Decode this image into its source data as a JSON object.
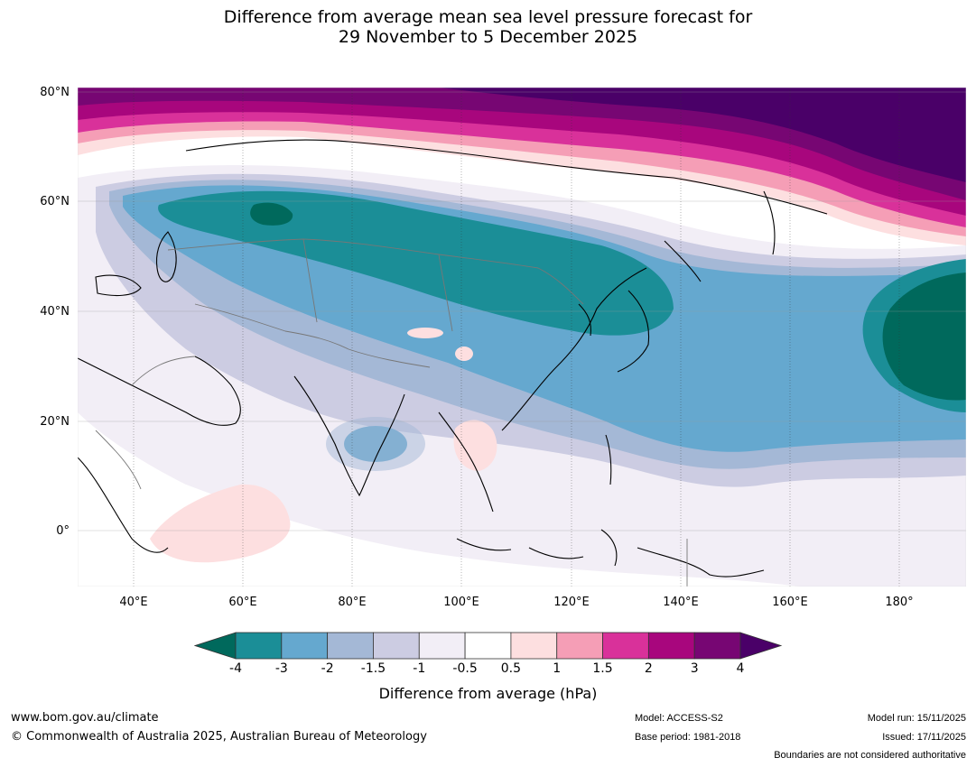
{
  "title": {
    "line1": "Difference from average mean sea level pressure forecast for",
    "line2": "29 November to 5 December 2025"
  },
  "map": {
    "lat_labels": [
      "80°N",
      "60°N",
      "40°N",
      "20°N",
      "0°"
    ],
    "lon_labels": [
      "40°E",
      "60°E",
      "80°E",
      "100°E",
      "120°E",
      "140°E",
      "160°E",
      "180°"
    ]
  },
  "colorbar": {
    "title": "Difference from average (hPa)",
    "tick_labels": [
      "-4",
      "-3",
      "-2",
      "-1.5",
      "-1",
      "-0.5",
      "0.5",
      "1",
      "1.5",
      "2",
      "3",
      "4"
    ],
    "colors": {
      "below": "#00695c",
      "bins": [
        "#1b8e97",
        "#65a8cf",
        "#a4b8d6",
        "#cccce2",
        "#f2eef6",
        "#ffffff",
        "#fddfe0",
        "#f59eb6",
        "#d9319a",
        "#a8067d",
        "#770673"
      ],
      "above": "#4a0068"
    }
  },
  "footer": {
    "website": "www.bom.gov.au/climate",
    "copyright": "© Commonwealth of Australia 2025, Australian Bureau of Meteorology",
    "model": "Model: ACCESS-S2",
    "base_period": "Base period: 1981-2018",
    "model_run": "Model run: 15/11/2025",
    "issued": "Issued: 17/11/2025",
    "disclaimer": "Boundaries are not considered authoritative"
  }
}
